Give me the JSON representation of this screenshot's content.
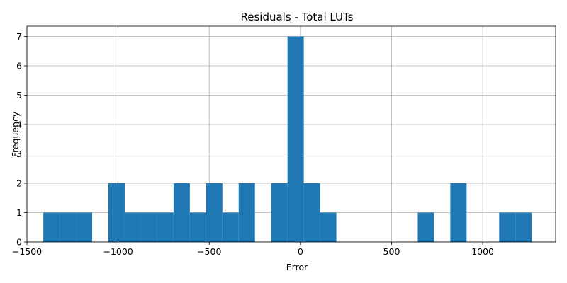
{
  "chart_data": {
    "type": "bar",
    "title": "Residuals - Total LUTs",
    "xlabel": "Error",
    "ylabel": "Frequency",
    "xlim": [
      -1500,
      1400
    ],
    "ylim": [
      0,
      7.35
    ],
    "xticks": [
      -1500,
      -1000,
      -500,
      0,
      500,
      1000
    ],
    "xtick_labels": [
      "−1500",
      "−1000",
      "−500",
      "0",
      "500",
      "1000"
    ],
    "yticks": [
      0,
      1,
      2,
      3,
      4,
      5,
      6,
      7
    ],
    "ytick_labels": [
      "0",
      "1",
      "2",
      "3",
      "4",
      "5",
      "6",
      "7"
    ],
    "grid": true,
    "color": "#1f77b4",
    "bin_width": 89.3,
    "bins": [
      {
        "left": -1410,
        "count": 1
      },
      {
        "left": -1320.7,
        "count": 1
      },
      {
        "left": -1231.4,
        "count": 1
      },
      {
        "left": -1053,
        "count": 2
      },
      {
        "left": -963.7,
        "count": 1
      },
      {
        "left": -874.4,
        "count": 1
      },
      {
        "left": -785.1,
        "count": 1
      },
      {
        "left": -695.8,
        "count": 2
      },
      {
        "left": -606.5,
        "count": 1
      },
      {
        "left": -517.2,
        "count": 2
      },
      {
        "left": -427.9,
        "count": 1
      },
      {
        "left": -338.6,
        "count": 2
      },
      {
        "left": -160,
        "count": 2
      },
      {
        "left": -70.7,
        "count": 7
      },
      {
        "left": 18.6,
        "count": 2
      },
      {
        "left": 107.9,
        "count": 1
      },
      {
        "left": 643.7,
        "count": 1
      },
      {
        "left": 822.3,
        "count": 2
      },
      {
        "left": 1090.2,
        "count": 1
      },
      {
        "left": 1179.5,
        "count": 1
      }
    ]
  }
}
